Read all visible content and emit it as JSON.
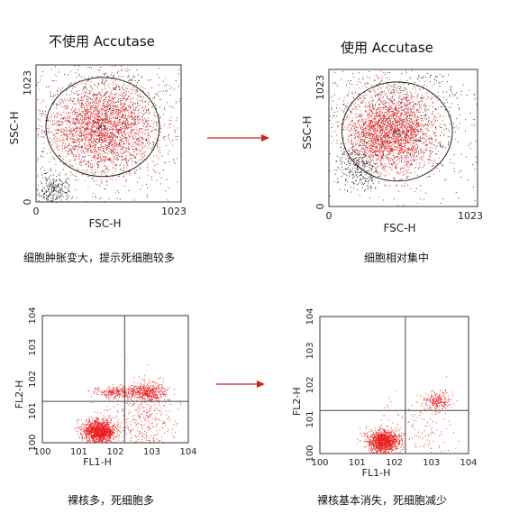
{
  "titles": {
    "left": "不使用 Accutase",
    "right": "使用 Accutase"
  },
  "captions": {
    "top_left": "细胞肿胀变大，提示死细胞较多",
    "top_right": "细胞相对集中",
    "bottom_left": "裸核多，死细胞多",
    "bottom_right": "裸核基本消失，死细胞减少"
  },
  "colors": {
    "events": "#e81a1a",
    "debris": "#111111",
    "arrow": "#cc2222",
    "frame": "#333333"
  },
  "chart_data": [
    {
      "id": "scatter-fsc-ssc-no-accutase",
      "type": "scatter",
      "xlabel": "FSC-H",
      "ylabel": "SSC-H",
      "xlim": [
        0,
        1023
      ],
      "ylim": [
        0,
        1023
      ],
      "xtick_labels": [
        "0",
        "1023"
      ],
      "ytick_labels": [
        "0",
        "1023"
      ],
      "gate": {
        "label": "R1",
        "center": [
          470,
          560
        ],
        "radius_x": 400,
        "radius_y": 370
      },
      "populations": [
        {
          "name": "",
          "color": "#e81a1a",
          "center": [
            470,
            560
          ],
          "spread": [
            190,
            160
          ],
          "n": 2600
        },
        {
          "name": "",
          "color": "#111111",
          "center": [
            500,
            620
          ],
          "spread": [
            320,
            300
          ],
          "n": 900
        },
        {
          "name": "",
          "color": "#111111",
          "center": [
            120,
            90
          ],
          "spread": [
            60,
            60
          ],
          "n": 260
        }
      ]
    },
    {
      "id": "scatter-fsc-ssc-accutase",
      "type": "scatter",
      "xlabel": "FSC-H",
      "ylabel": "SSC-H",
      "xlim": [
        0,
        1023
      ],
      "ylim": [
        0,
        1023
      ],
      "xtick_labels": [
        "0",
        "1023"
      ],
      "ytick_labels": [
        "0",
        "1023"
      ],
      "gate": {
        "label": "R1",
        "center": [
          470,
          560
        ],
        "radius_x": 380,
        "radius_y": 370
      },
      "populations": [
        {
          "name": "",
          "color": "#e81a1a",
          "center": [
            420,
            560
          ],
          "spread": [
            150,
            150
          ],
          "n": 2600
        },
        {
          "name": "",
          "color": "#111111",
          "center": [
            480,
            650
          ],
          "spread": [
            300,
            270
          ],
          "n": 850
        },
        {
          "name": "",
          "color": "#111111",
          "center": [
            200,
            280
          ],
          "spread": [
            70,
            90
          ],
          "n": 260
        }
      ]
    },
    {
      "id": "scatter-fl1-fl2-no-accutase",
      "type": "scatter",
      "log_scale": true,
      "xlabel": "FL1-H",
      "ylabel": "FL2-H",
      "xlim": [
        1,
        10000
      ],
      "ylim": [
        1,
        10000
      ],
      "xtick_labels": [
        "100",
        "101",
        "102",
        "103",
        "104"
      ],
      "ytick_labels": [
        "100",
        "101",
        "102",
        "103",
        "104"
      ],
      "quadrant": {
        "x": 180,
        "y": 20
      },
      "populations": [
        {
          "name": "",
          "color": "#e81a1a",
          "center": [
            35,
            2.3
          ],
          "spread": [
            0.22,
            0.18
          ],
          "n": 1400
        },
        {
          "name": "",
          "color": "#e81a1a",
          "center": [
            800,
            40
          ],
          "spread": [
            0.25,
            0.15
          ],
          "n": 420
        },
        {
          "name": "",
          "color": "#e81a1a",
          "center": [
            120,
            40
          ],
          "spread": [
            0.35,
            0.1
          ],
          "n": 320
        },
        {
          "name": "",
          "color": "#e81a1a",
          "center": [
            500,
            6
          ],
          "spread": [
            0.5,
            0.55
          ],
          "n": 380
        }
      ]
    },
    {
      "id": "scatter-fl1-fl2-accutase",
      "type": "scatter",
      "log_scale": true,
      "xlabel": "FL1-H",
      "ylabel": "FL2-H",
      "xlim": [
        1,
        10000
      ],
      "ylim": [
        1,
        10000
      ],
      "xtick_labels": [
        "100",
        "101",
        "102",
        "103",
        "104"
      ],
      "ytick_labels": [
        "100",
        "101",
        "102",
        "103",
        "104"
      ],
      "quadrant": {
        "x": 200,
        "y": 18
      },
      "populations": [
        {
          "name": "",
          "color": "#e81a1a",
          "center": [
            50,
            2.3
          ],
          "spread": [
            0.22,
            0.17
          ],
          "n": 1300
        },
        {
          "name": "",
          "color": "#e81a1a",
          "center": [
            1400,
            35
          ],
          "spread": [
            0.18,
            0.15
          ],
          "n": 220
        },
        {
          "name": "",
          "color": "#e81a1a",
          "center": [
            600,
            5
          ],
          "spread": [
            0.5,
            0.55
          ],
          "n": 150
        }
      ]
    }
  ]
}
